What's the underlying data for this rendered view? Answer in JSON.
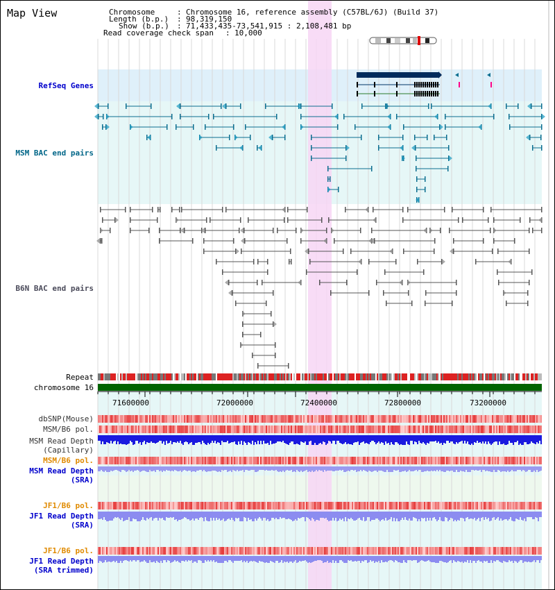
{
  "title": "Map View",
  "header": {
    "chromosome_label": "Chromosome",
    "chromosome_value": "Chromosome 16, reference assembly (C57BL/6J) (Build 37)",
    "length_label": "Length (b.p.)",
    "length_value": "98,319,150",
    "show_label": "Show (b.p.)",
    "show_value": "71,433,435-73,541,915 : 2,108,481 bp",
    "coverage_label": "Read coverage check span",
    "coverage_value": "10,000"
  },
  "tracks": {
    "refseq": "RefSeq Genes",
    "msm_bac": "MSM BAC end pairs",
    "b6n_bac": "B6N BAC end pairs",
    "repeat": "Repeat",
    "chromosome": "chromosome 16",
    "dbsnp": "dbSNP(Mouse)",
    "msm_b6_pol_1": "MSM/B6 pol.",
    "msm_depth_cap_1": "MSM Read Depth",
    "msm_depth_cap_2": "(Capillary)",
    "msm_b6_pol_2": "MSM/B6 pol.",
    "msm_depth_sra_1": "MSM Read Depth",
    "msm_depth_sra_2": "(SRA)",
    "jf1_b6_pol_1": "JF1/B6 pol.",
    "jf1_depth_sra_1": "JF1 Read Depth",
    "jf1_depth_sra_2": "(SRA)",
    "jf1_b6_pol_2": "JF1/B6 pol.",
    "jf1_depth_trim_1": "JF1 Read Depth",
    "jf1_depth_trim_2": "(SRA trimmed)"
  },
  "axis": {
    "ticks": [
      "71600000",
      "72000000",
      "72400000",
      "72800000",
      "73200000"
    ],
    "range_start": 71433435,
    "range_end": 73541915
  },
  "colors": {
    "highlight": "#f7d6f5",
    "refseq_bg": "#dff0fa",
    "bac_bg": "#e6f7f7",
    "msm_line": "#0a6d8f",
    "b6n_line": "#555555",
    "chromosome_bar": "#006400",
    "gene_dark": "#002b5c",
    "snp_red": "#f08080",
    "depth_blue": "#1a1adf",
    "depth_lavender": "#8c8cf0"
  }
}
